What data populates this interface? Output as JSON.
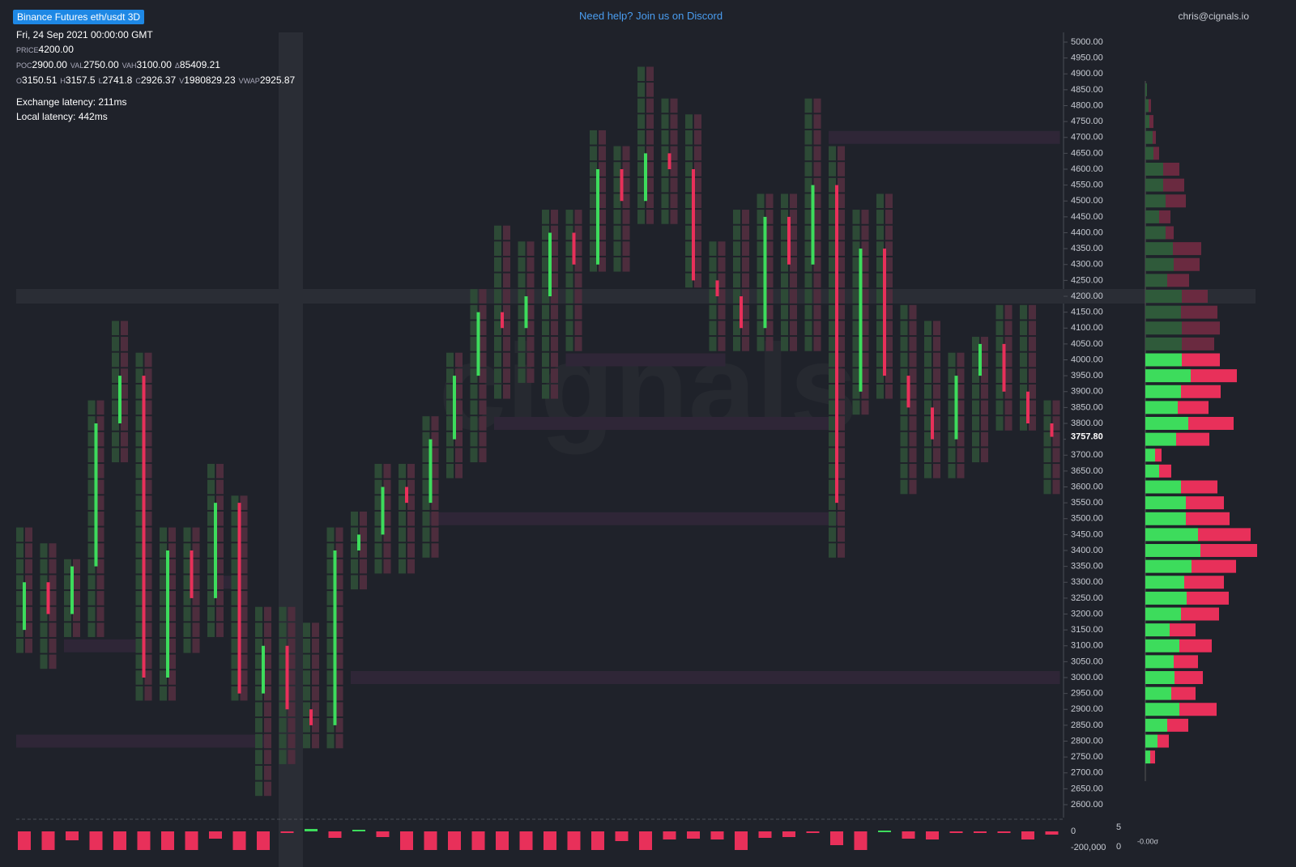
{
  "header": {
    "badge": "Binance Futures eth/usdt 3D",
    "help": "Need help? Join us on Discord",
    "user": "chris@cignals.io"
  },
  "info": {
    "date": "Fri, 24 Sep 2021 00:00:00 GMT",
    "rows": [
      [
        {
          "k": "PRICE",
          "v": "4200.00"
        }
      ],
      [
        {
          "k": "POC",
          "v": "2900.00"
        },
        {
          "k": "VAL",
          "v": "2750.00"
        },
        {
          "k": "VAH",
          "v": "3100.00"
        },
        {
          "k": "Δ",
          "v": "85409.21"
        }
      ],
      [
        {
          "k": "O",
          "v": "3150.51"
        },
        {
          "k": "H",
          "v": "3157.5"
        },
        {
          "k": "L",
          "v": "2741.8"
        },
        {
          "k": "C",
          "v": "2926.37"
        },
        {
          "k": "V",
          "v": "1980829.23"
        },
        {
          "k": "VWAP",
          "v": "2925.87"
        }
      ]
    ],
    "latency": [
      "Exchange latency: 211ms",
      "Local latency: 442ms"
    ]
  },
  "chart": {
    "ylim": [
      2570,
      5030
    ],
    "yticks": [
      {
        "value": 2600,
        "label": "2600.00"
      },
      {
        "value": 2650,
        "label": "2650.00"
      },
      {
        "value": 2700,
        "label": "2700.00"
      },
      {
        "value": 2750,
        "label": "2750.00"
      },
      {
        "value": 2800,
        "label": "2800.00"
      },
      {
        "value": 2850,
        "label": "2850.00"
      },
      {
        "value": 2900,
        "label": "2900.00"
      },
      {
        "value": 2950,
        "label": "2950.00"
      },
      {
        "value": 3000,
        "label": "3000.00"
      },
      {
        "value": 3050,
        "label": "3050.00"
      },
      {
        "value": 3100,
        "label": "3100.00"
      },
      {
        "value": 3150,
        "label": "3150.00"
      },
      {
        "value": 3200,
        "label": "3200.00"
      },
      {
        "value": 3250,
        "label": "3250.00"
      },
      {
        "value": 3300,
        "label": "3300.00"
      },
      {
        "value": 3350,
        "label": "3350.00"
      },
      {
        "value": 3400,
        "label": "3400.00"
      },
      {
        "value": 3450,
        "label": "3450.00"
      },
      {
        "value": 3500,
        "label": "3500.00"
      },
      {
        "value": 3550,
        "label": "3550.00"
      },
      {
        "value": 3600,
        "label": "3600.00"
      },
      {
        "value": 3650,
        "label": "3650.00"
      },
      {
        "value": 3700,
        "label": "3700.00"
      },
      {
        "value": 3750,
        "label": "3750.00"
      },
      {
        "value": 3800,
        "label": "3800.00"
      },
      {
        "value": 3850,
        "label": "3850.00"
      },
      {
        "value": 3900,
        "label": "3900.00"
      },
      {
        "value": 3950,
        "label": "3950.00"
      },
      {
        "value": 4000,
        "label": "4000.00"
      },
      {
        "value": 4050,
        "label": "4050.00"
      },
      {
        "value": 4100,
        "label": "4100.00"
      },
      {
        "value": 4150,
        "label": "4150.00"
      },
      {
        "value": 4200,
        "label": "4200.00"
      },
      {
        "value": 4250,
        "label": "4250.00"
      },
      {
        "value": 4300,
        "label": "4300.00"
      },
      {
        "value": 4350,
        "label": "4350.00"
      },
      {
        "value": 4400,
        "label": "4400.00"
      },
      {
        "value": 4450,
        "label": "4450.00"
      },
      {
        "value": 4500,
        "label": "4500.00"
      },
      {
        "value": 4550,
        "label": "4550.00"
      },
      {
        "value": 4600,
        "label": "4600.00"
      },
      {
        "value": 4650,
        "label": "4650.00"
      },
      {
        "value": 4700,
        "label": "4700.00"
      },
      {
        "value": 4750,
        "label": "4750.00"
      },
      {
        "value": 4800,
        "label": "4800.00"
      },
      {
        "value": 4850,
        "label": "4850.00"
      },
      {
        "value": 4900,
        "label": "4900.00"
      },
      {
        "value": 4950,
        "label": "4950.00"
      },
      {
        "value": 5000,
        "label": "5000.00"
      }
    ],
    "last_price": {
      "value": 3757.8,
      "label": "3757.80"
    },
    "candles": [
      [
        3150,
        3450,
        3100,
        3300
      ],
      [
        3300,
        3400,
        3050,
        3200
      ],
      [
        3200,
        3350,
        3150,
        3350
      ],
      [
        3350,
        3850,
        3150,
        3800
      ],
      [
        3800,
        4100,
        3700,
        3950
      ],
      [
        3950,
        4000,
        2950,
        3000
      ],
      [
        3000,
        3450,
        2950,
        3400
      ],
      [
        3400,
        3450,
        3100,
        3250
      ],
      [
        3250,
        3650,
        3150,
        3550
      ],
      [
        3550,
        3550,
        2950,
        2950
      ],
      [
        2950,
        3200,
        2650,
        3100
      ],
      [
        3100,
        3200,
        2750,
        2900
      ],
      [
        2900,
        3150,
        2800,
        2850
      ],
      [
        2850,
        3450,
        2800,
        3400
      ],
      [
        3400,
        3500,
        3300,
        3450
      ],
      [
        3450,
        3650,
        3350,
        3600
      ],
      [
        3600,
        3650,
        3350,
        3550
      ],
      [
        3550,
        3800,
        3400,
        3750
      ],
      [
        3750,
        4000,
        3650,
        3950
      ],
      [
        3950,
        4200,
        3700,
        4150
      ],
      [
        4150,
        4400,
        3900,
        4100
      ],
      [
        4100,
        4350,
        3950,
        4200
      ],
      [
        4200,
        4450,
        3900,
        4400
      ],
      [
        4400,
        4450,
        4050,
        4300
      ],
      [
        4300,
        4700,
        4300,
        4600
      ],
      [
        4600,
        4650,
        4300,
        4500
      ],
      [
        4500,
        4900,
        4450,
        4650
      ],
      [
        4650,
        4800,
        4450,
        4600
      ],
      [
        4600,
        4750,
        4250,
        4250
      ],
      [
        4250,
        4350,
        4050,
        4200
      ],
      [
        4200,
        4450,
        4050,
        4100
      ],
      [
        4100,
        4500,
        4050,
        4450
      ],
      [
        4450,
        4500,
        4050,
        4300
      ],
      [
        4300,
        4800,
        4050,
        4550
      ],
      [
        4550,
        4650,
        3400,
        3550
      ],
      [
        3900,
        4450,
        3850,
        4350
      ],
      [
        4350,
        4500,
        3900,
        3950
      ],
      [
        3950,
        4150,
        3600,
        3850
      ],
      [
        3850,
        4100,
        3650,
        3750
      ],
      [
        3750,
        4000,
        3650,
        3950
      ],
      [
        3950,
        4050,
        3700,
        4050
      ],
      [
        4050,
        4150,
        3800,
        3900
      ],
      [
        3900,
        4150,
        3800,
        3800
      ],
      [
        3800,
        3850,
        3600,
        3757.8
      ]
    ],
    "levels": [
      [
        4700,
        34,
        43
      ],
      [
        4000,
        23,
        29
      ],
      [
        3800,
        20,
        34
      ],
      [
        3500,
        17,
        34
      ],
      [
        3000,
        14,
        43
      ],
      [
        2800,
        0,
        10
      ],
      [
        3100,
        2,
        5
      ],
      [
        3300,
        8,
        9
      ]
    ],
    "profile": {
      "xlim": [
        0,
        140
      ],
      "prices": [
        2750,
        2800,
        2850,
        2900,
        2950,
        3000,
        3050,
        3100,
        3150,
        3200,
        3250,
        3300,
        3350,
        3400,
        3450,
        3500,
        3550,
        3600,
        3650,
        3700,
        3750,
        3800,
        3850,
        3900,
        3950,
        4000,
        4050,
        4100,
        4150,
        4200,
        4250,
        4300,
        4350,
        4400,
        4450,
        4500,
        4550,
        4600,
        4650,
        4700,
        4750,
        4800,
        4850
      ],
      "buy": [
        6,
        15,
        27,
        42,
        32,
        36,
        35,
        42,
        30,
        44,
        51,
        48,
        57,
        68,
        65,
        50,
        50,
        44,
        17,
        12,
        38,
        53,
        40,
        44,
        56,
        45,
        45,
        45,
        44,
        45,
        27,
        35,
        34,
        25,
        17,
        25,
        22,
        22,
        10,
        9,
        5,
        4,
        2
      ],
      "sell": [
        6,
        14,
        26,
        46,
        30,
        35,
        30,
        40,
        32,
        47,
        52,
        49,
        55,
        70,
        65,
        54,
        47,
        45,
        15,
        8,
        41,
        56,
        38,
        49,
        57,
        47,
        40,
        47,
        45,
        32,
        27,
        32,
        35,
        10,
        14,
        25,
        26,
        20,
        7,
        4,
        5,
        3,
        0
      ]
    },
    "delta": {
      "ylim": [
        -240000,
        40000
      ],
      "yticks": [
        {
          "value": 0,
          "label": "0"
        },
        {
          "value": -200000,
          "label": "-200,000"
        }
      ],
      "values": [
        -230000,
        -230000,
        -110000,
        -230000,
        -230000,
        -230000,
        -230000,
        -230000,
        -90000,
        -230000,
        -230000,
        -10000,
        30000,
        -80000,
        20000,
        -70000,
        -230000,
        -230000,
        -230000,
        -230000,
        -230000,
        -230000,
        -230000,
        -230000,
        -230000,
        -120000,
        -230000,
        -100000,
        -90000,
        -100000,
        -230000,
        -80000,
        -70000,
        -20000,
        -170000,
        -230000,
        10000,
        -90000,
        -100000,
        -10000,
        -5000,
        -10000,
        -100000,
        -40000
      ]
    },
    "side_axis": [
      "5",
      "0",
      "-0.00σ"
    ]
  }
}
